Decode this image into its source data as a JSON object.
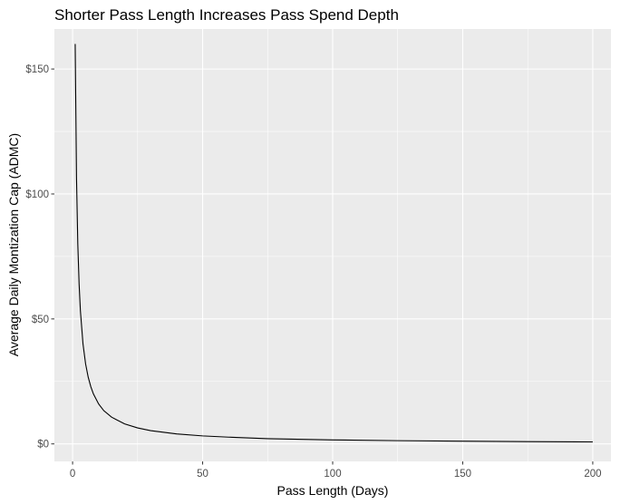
{
  "chart_data": {
    "type": "line",
    "title": "Shorter Pass Length Increases Pass Spend Depth",
    "xlabel": "Pass Length (Days)",
    "ylabel": "Average Daily Montization Cap (ADMC)",
    "xlim": [
      -7,
      207
    ],
    "ylim": [
      -7,
      166
    ],
    "x_ticks": [
      0,
      50,
      100,
      150,
      200
    ],
    "x_tick_labels": [
      "0",
      "50",
      "100",
      "150",
      "200"
    ],
    "y_ticks": [
      0,
      50,
      100,
      150
    ],
    "y_tick_labels": [
      "$0",
      "$50",
      "$100",
      "$150"
    ],
    "grid": true,
    "background": "#ebebeb",
    "grid_color": "#ffffff",
    "line_color": "#000000",
    "legend": "none",
    "series": [
      {
        "x": [
          1,
          1.5,
          2,
          2.5,
          3,
          4,
          5,
          6,
          7,
          8,
          10,
          12,
          15,
          20,
          25,
          30,
          40,
          50,
          60,
          75,
          100,
          125,
          150,
          175,
          200
        ],
        "y": [
          160,
          106.7,
          80,
          64,
          53.3,
          40,
          32,
          26.7,
          22.9,
          20,
          16,
          13.3,
          10.7,
          8,
          6.4,
          5.3,
          4,
          3.2,
          2.7,
          2.1,
          1.6,
          1.3,
          1.1,
          0.9,
          0.8
        ]
      }
    ]
  }
}
